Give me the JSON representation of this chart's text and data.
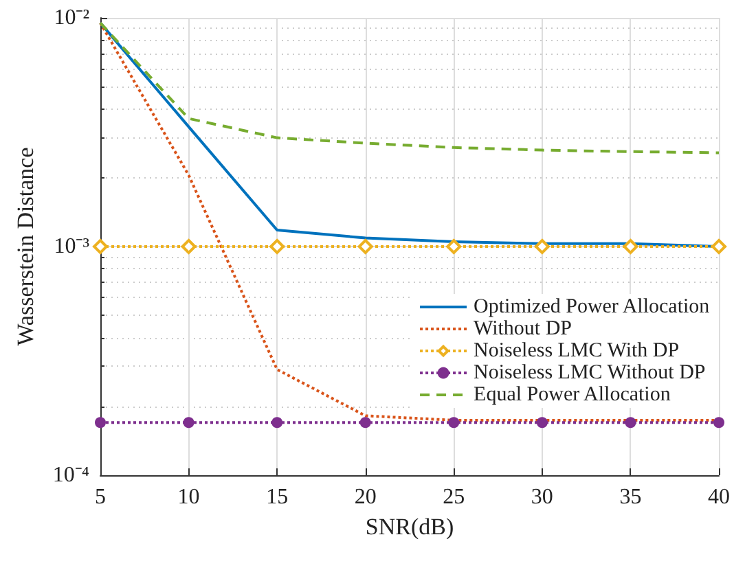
{
  "chart_data": {
    "type": "line",
    "xlabel": "SNR(dB)",
    "ylabel": "Wasserstein Distance",
    "x": [
      5,
      10,
      15,
      20,
      25,
      30,
      35,
      40
    ],
    "series": [
      {
        "name": "Optimized Power Allocation",
        "color": "#0072bd",
        "line_style": "solid",
        "marker": "none",
        "values": [
          0.0095,
          0.00334,
          0.00118,
          0.00109,
          0.00105,
          0.00103,
          0.00103,
          0.001
        ]
      },
      {
        "name": "Without DP",
        "color": "#d95319",
        "line_style": "dotted",
        "marker": "none",
        "values": [
          0.0095,
          0.00205,
          0.00029,
          0.000182,
          0.000174,
          0.000174,
          0.000174,
          0.000174
        ]
      },
      {
        "name": "Noiseless LMC With DP",
        "color": "#edb120",
        "line_style": "dotted",
        "marker": "diamond",
        "values": [
          0.001,
          0.001,
          0.001,
          0.001,
          0.001,
          0.001,
          0.001,
          0.001
        ]
      },
      {
        "name": "Noiseless LMC Without DP",
        "color": "#7e2f8e",
        "line_style": "dotted",
        "marker": "circle",
        "values": [
          0.00017,
          0.00017,
          0.00017,
          0.00017,
          0.00017,
          0.00017,
          0.00017,
          0.00017
        ]
      },
      {
        "name": "Equal Power Allocation",
        "color": "#77ac30",
        "line_style": "dashed",
        "marker": "none",
        "values": [
          0.0095,
          0.00363,
          0.00299,
          0.00283,
          0.00271,
          0.00264,
          0.0026,
          0.00257
        ]
      }
    ],
    "log": "y",
    "xlim": [
      5,
      40
    ],
    "xticks": [
      5,
      10,
      15,
      20,
      25,
      30,
      35,
      40
    ],
    "ylim": [
      0.0001,
      0.01
    ],
    "yticks": [
      {
        "value": 0.0001,
        "label": "10⁻⁴"
      },
      {
        "value": 0.001,
        "label": "10⁻³"
      },
      {
        "value": 0.01,
        "label": "10⁻²"
      }
    ],
    "grid": true,
    "legend": "bottom right"
  }
}
